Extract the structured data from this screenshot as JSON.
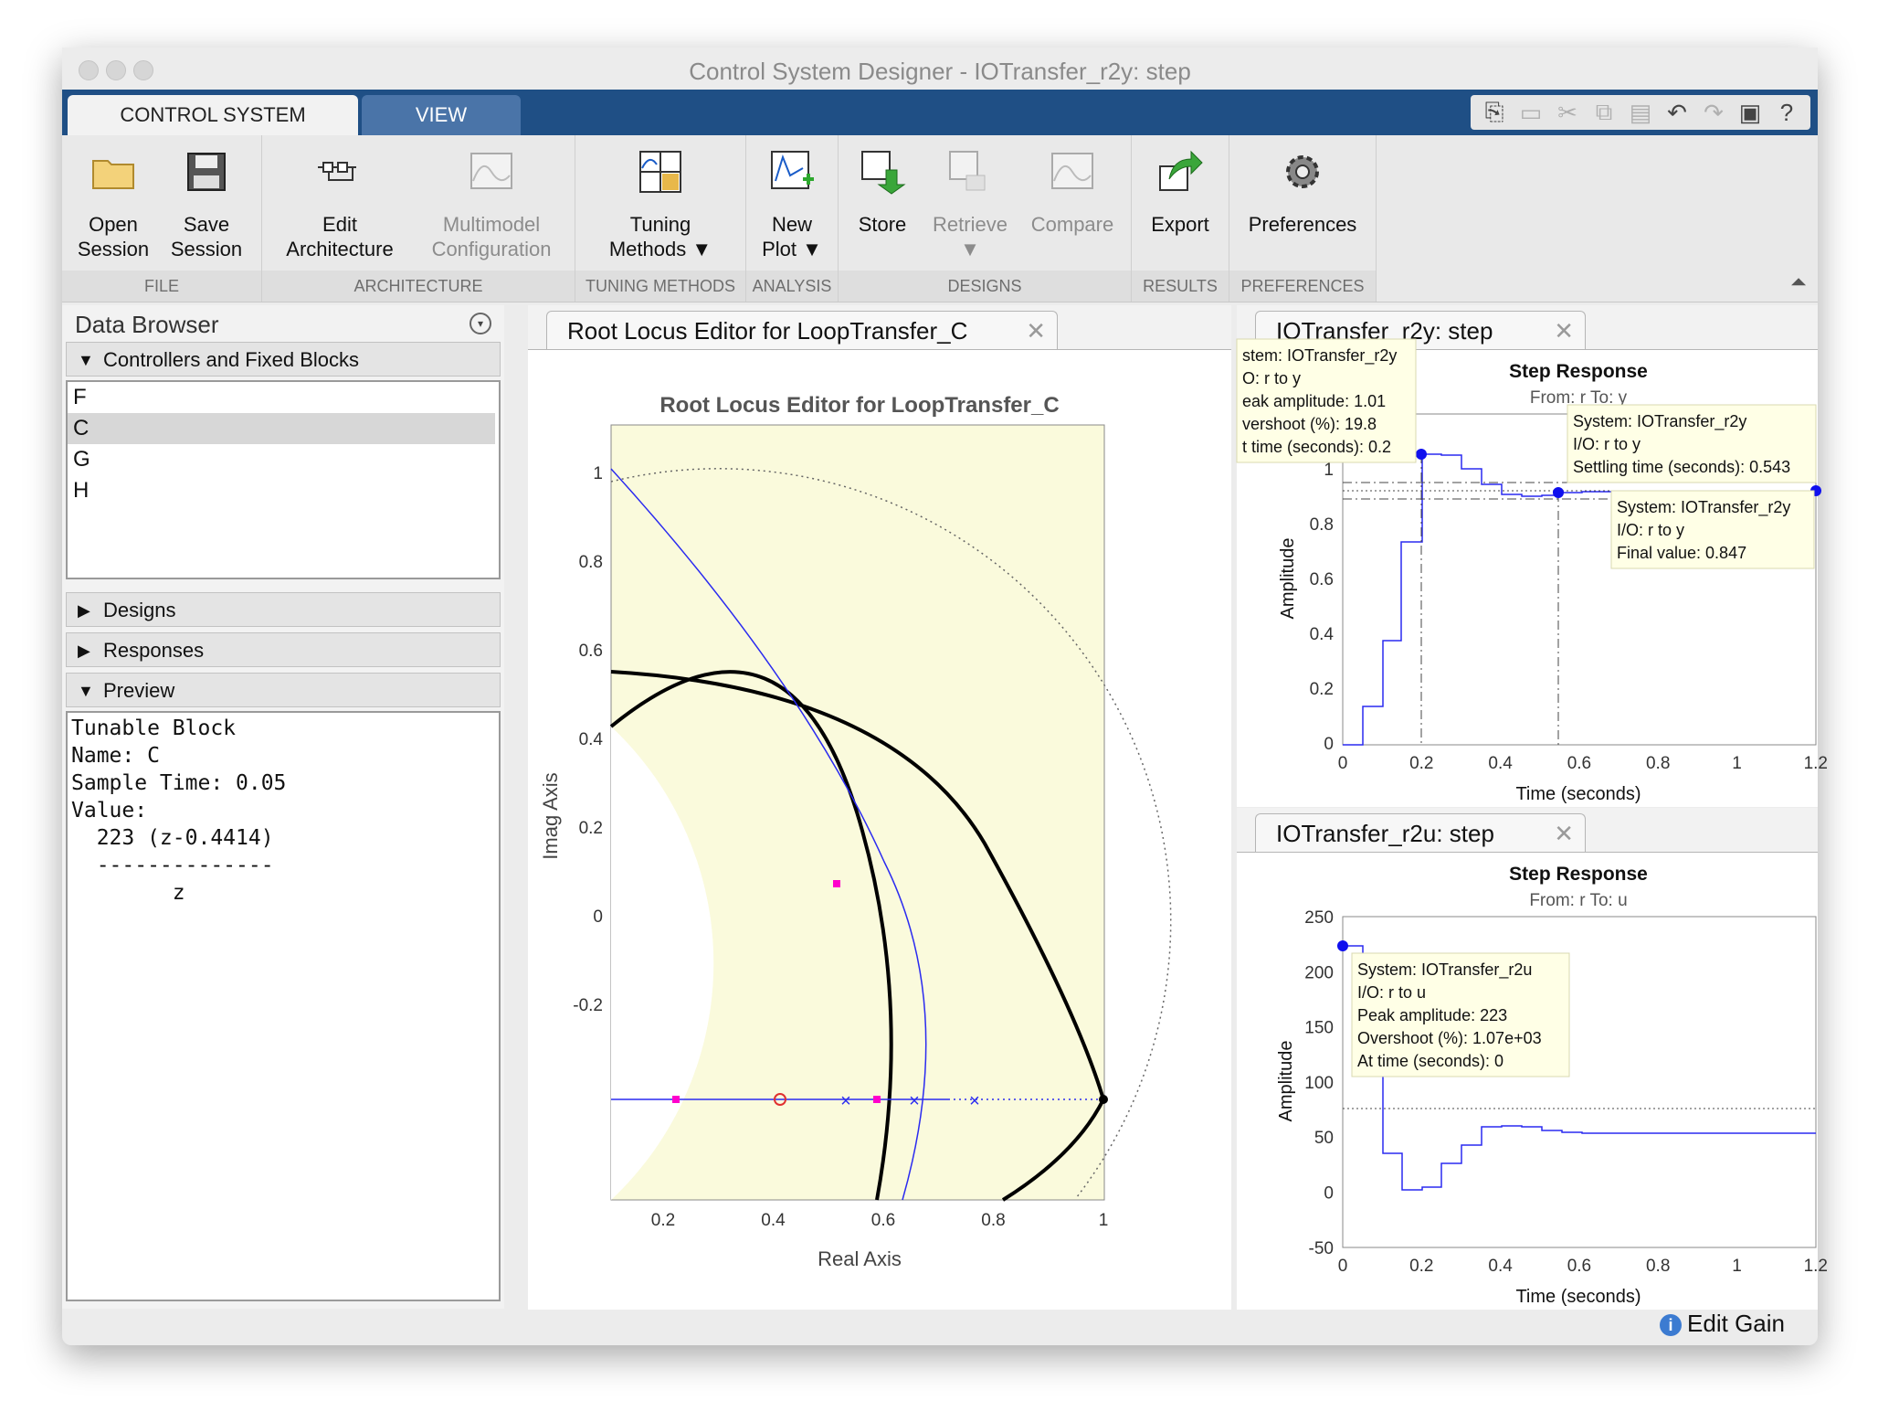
{
  "window": {
    "title": "Control System Designer - IOTransfer_r2y: step"
  },
  "tabs": {
    "control_system": "CONTROL SYSTEM",
    "view": "VIEW"
  },
  "ribbon": {
    "open_session": [
      "Open",
      "Session"
    ],
    "save_session": [
      "Save",
      "Session"
    ],
    "edit_architecture": [
      "Edit",
      "Architecture"
    ],
    "multimodel": [
      "Multimodel",
      "Configuration"
    ],
    "tuning_methods": [
      "Tuning",
      "Methods ▼"
    ],
    "new_plot": [
      "New",
      "Plot ▼"
    ],
    "store": "Store",
    "retrieve": [
      "Retrieve",
      "▼"
    ],
    "compare": "Compare",
    "export": "Export",
    "preferences": "Preferences",
    "groups": {
      "file": "FILE",
      "architecture": "ARCHITECTURE",
      "tuning": "TUNING METHODS",
      "analysis": "ANALYSIS",
      "designs": "DESIGNS",
      "results": "RESULTS",
      "preferences": "PREFERENCES"
    }
  },
  "data_browser": {
    "title": "Data Browser",
    "controllers_header": "Controllers and Fixed Blocks",
    "controllers": [
      "F",
      "C",
      "G",
      "H"
    ],
    "selected": "C",
    "designs": "Designs",
    "responses": "Responses",
    "preview_header": "Preview",
    "preview_text": "Tunable Block\nName: C\nSample Time: 0.05\nValue:\n  223 (z-0.4414)\n  --------------\n        z"
  },
  "root_locus": {
    "tab": "Root Locus Editor for LoopTransfer_C",
    "title": "Root Locus Editor for LoopTransfer_C",
    "xlabel": "Real Axis",
    "ylabel": "Imag Axis",
    "xticks": [
      "0.2",
      "0.4",
      "0.6",
      "0.8",
      "1"
    ],
    "yticks": [
      "1",
      "0.8",
      "0.6",
      "0.4",
      "0.2",
      "0",
      "-0.2"
    ]
  },
  "step_r2y": {
    "tab": "IOTransfer_r2y: step",
    "title": "Step Response",
    "subtitle": "From: r  To: y",
    "xlabel": "Time (seconds)",
    "ylabel": "Amplitude",
    "xticks": [
      "0",
      "0.2",
      "0.4",
      "0.6",
      "0.8",
      "1",
      "1.2"
    ],
    "yticks": [
      "1",
      "0.8",
      "0.6",
      "0.4",
      "0.2",
      "0"
    ],
    "tip_peak": [
      "stem: IOTransfer_r2y",
      "O: r to y",
      "eak amplitude: 1.01",
      "vershoot (%): 19.8",
      "t time (seconds): 0.2"
    ],
    "tip_settling": [
      "System: IOTransfer_r2y",
      "I/O: r to y",
      "Settling time (seconds): 0.543"
    ],
    "tip_final": [
      "System: IOTransfer_r2y",
      "I/O: r to y",
      "Final value: 0.847"
    ]
  },
  "step_r2u": {
    "tab": "IOTransfer_r2u: step",
    "title": "Step Response",
    "subtitle": "From: r  To: u",
    "xlabel": "Time (seconds)",
    "ylabel": "Amplitude",
    "xticks": [
      "0",
      "0.2",
      "0.4",
      "0.6",
      "0.8",
      "1",
      "1.2"
    ],
    "yticks": [
      "250",
      "200",
      "150",
      "100",
      "50",
      "0",
      "-50"
    ],
    "tip": [
      "System: IOTransfer_r2u",
      "I/O: r to u",
      "Peak amplitude: 223",
      "Overshoot (%): 1.07e+03",
      "At time (seconds): 0"
    ]
  },
  "status": {
    "edit_gain": "Edit Gain"
  },
  "colors": {
    "tab_bar": "#1f4f85",
    "locus": "#2a2af0",
    "region": "#fafadc",
    "marker": "#ff00cc"
  }
}
